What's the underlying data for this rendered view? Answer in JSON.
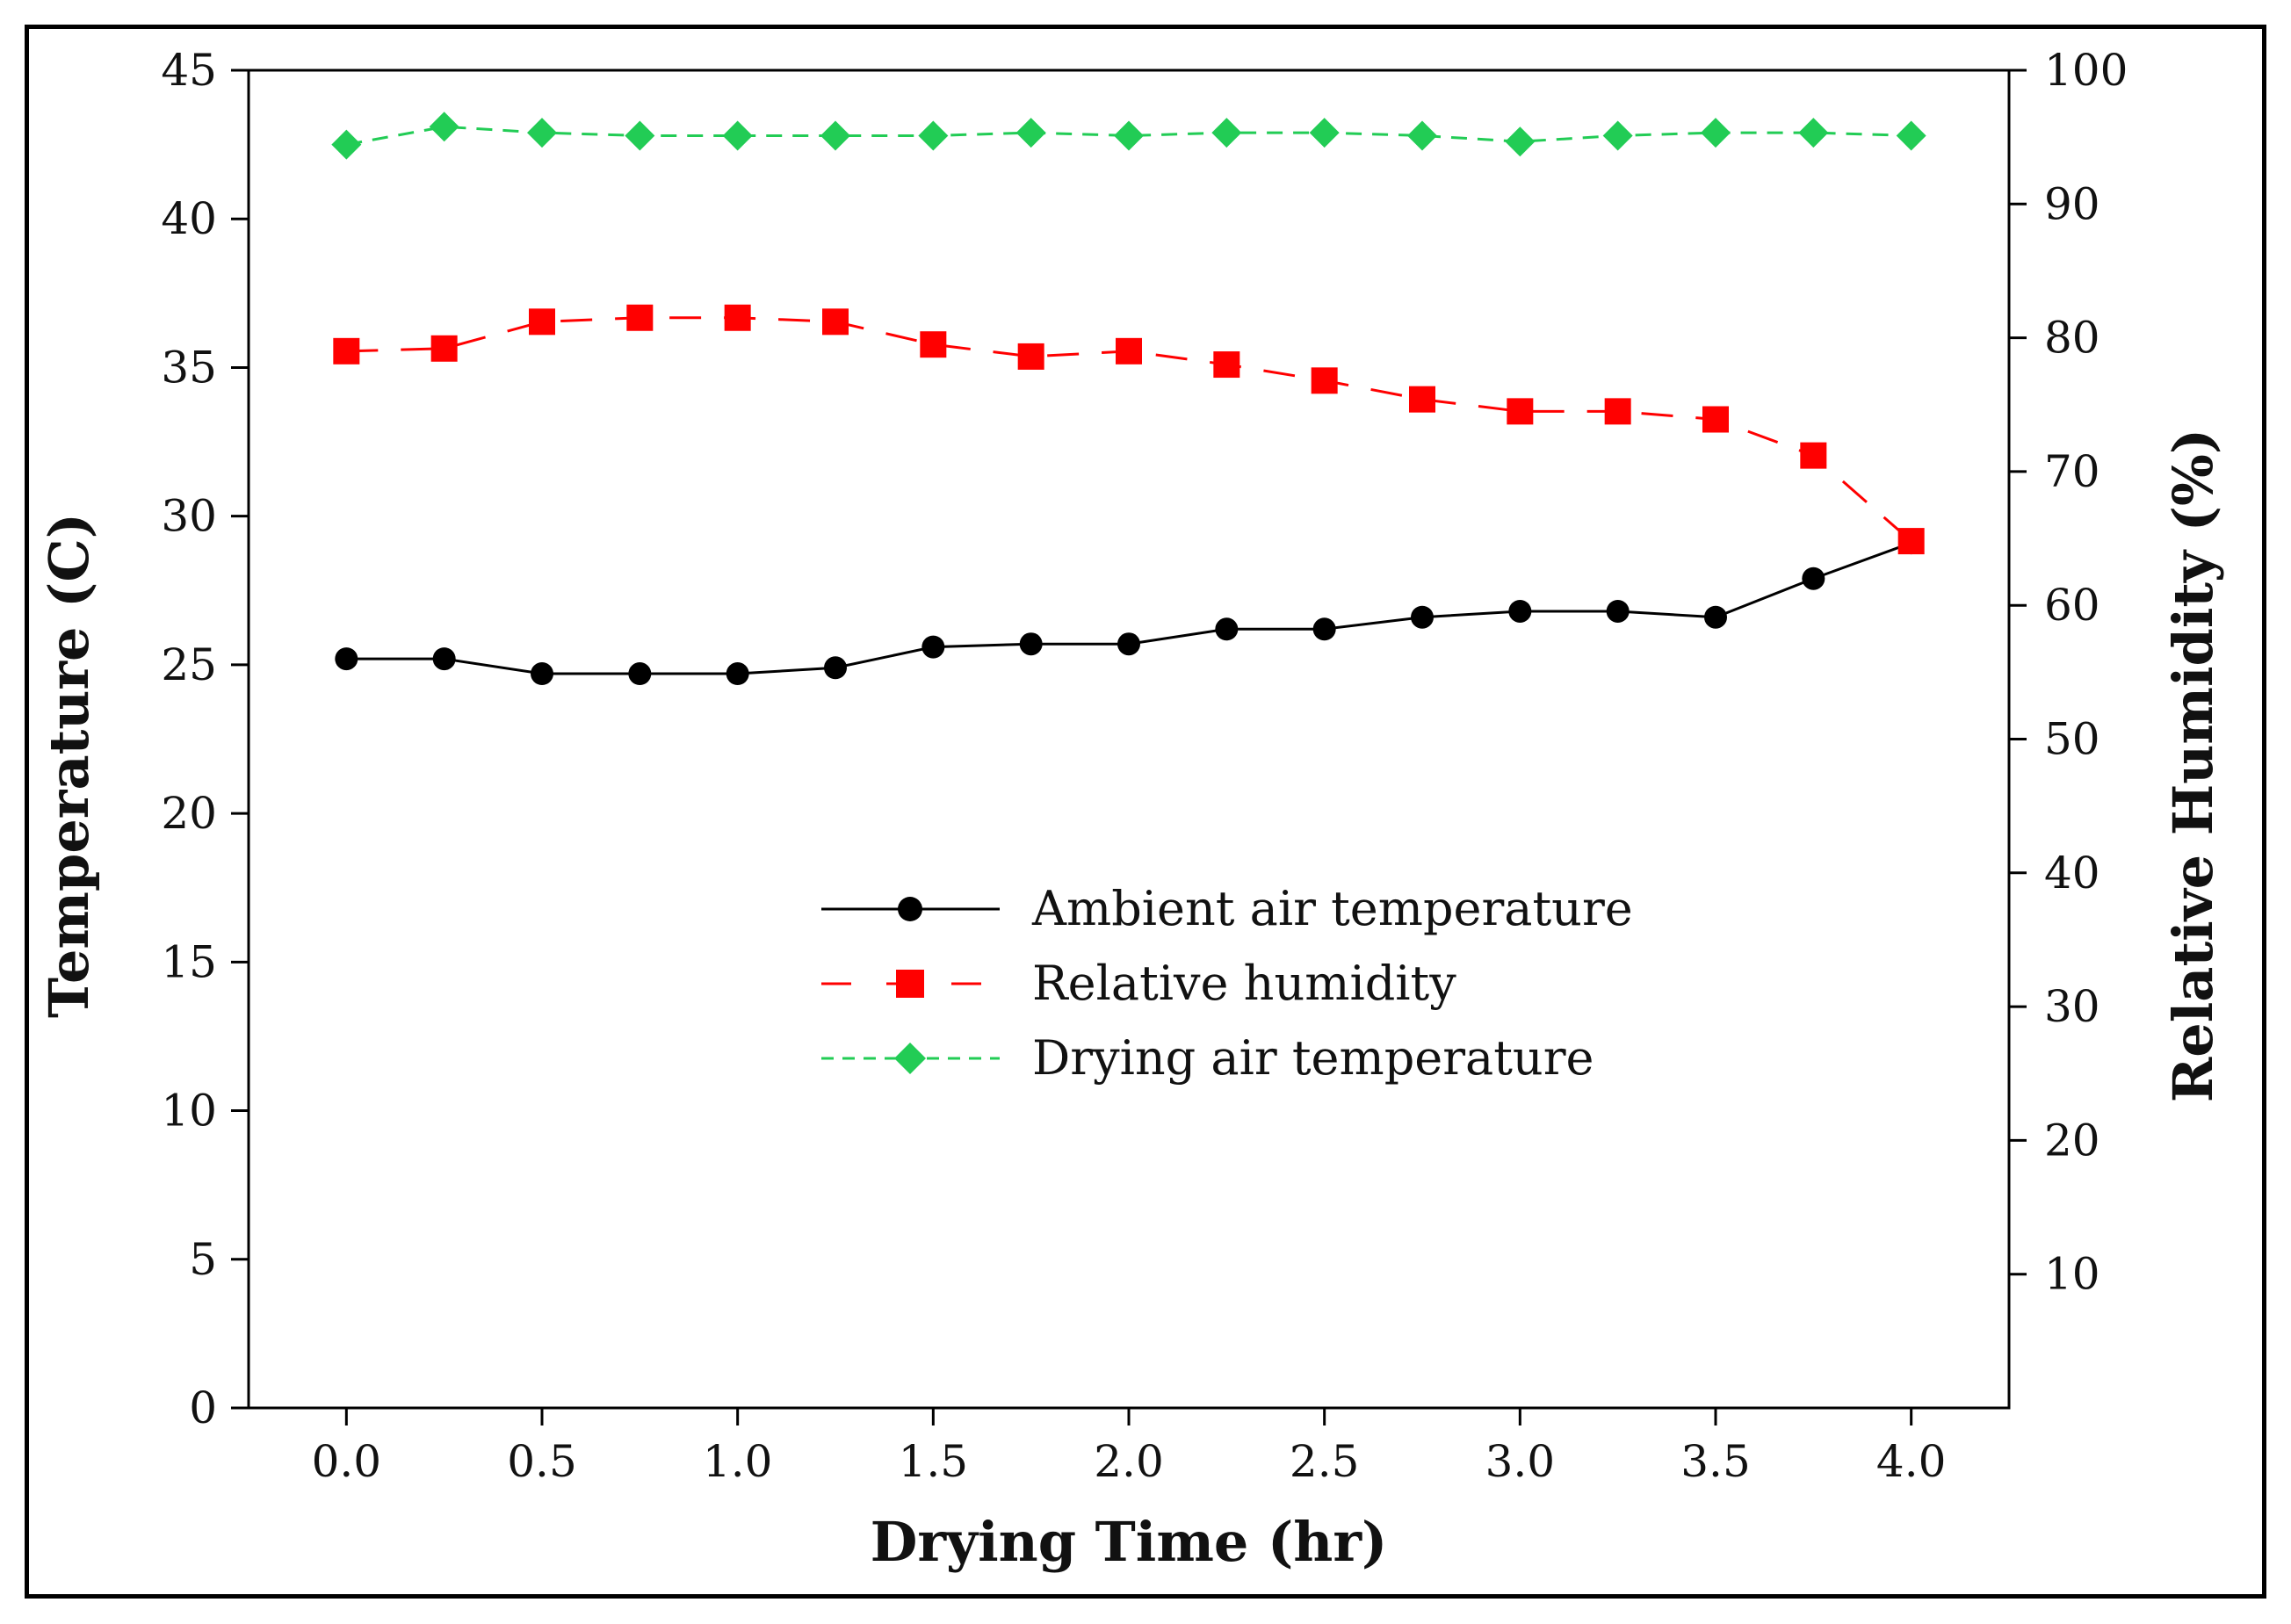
{
  "chart_data": {
    "type": "line",
    "title": "",
    "xlabel": "Drying Time (hr)",
    "ylabel_left": "Temperature (C)",
    "ylabel_right": "Relative Humidity (%)",
    "xlim": [
      -0.25,
      4.25
    ],
    "ylim_left": [
      0,
      45
    ],
    "ylim_right": [
      0,
      100
    ],
    "x": [
      0.0,
      0.25,
      0.5,
      0.75,
      1.0,
      1.25,
      1.5,
      1.75,
      2.0,
      2.25,
      2.5,
      2.75,
      3.0,
      3.25,
      3.5,
      3.75,
      4.0
    ],
    "x_ticks": [
      {
        "value": 0.0,
        "label": "0.0"
      },
      {
        "value": 0.5,
        "label": "0.5"
      },
      {
        "value": 1.0,
        "label": "1.0"
      },
      {
        "value": 1.5,
        "label": "1.5"
      },
      {
        "value": 2.0,
        "label": "2.0"
      },
      {
        "value": 2.5,
        "label": "2.5"
      },
      {
        "value": 3.0,
        "label": "3.0"
      },
      {
        "value": 3.5,
        "label": "3.5"
      },
      {
        "value": 4.0,
        "label": "4.0"
      }
    ],
    "y_left_ticks": [
      {
        "value": 0,
        "label": "0"
      },
      {
        "value": 5,
        "label": "5"
      },
      {
        "value": 10,
        "label": "10"
      },
      {
        "value": 15,
        "label": "15"
      },
      {
        "value": 20,
        "label": "20"
      },
      {
        "value": 25,
        "label": "25"
      },
      {
        "value": 30,
        "label": "30"
      },
      {
        "value": 35,
        "label": "35"
      },
      {
        "value": 40,
        "label": "40"
      },
      {
        "value": 45,
        "label": "45"
      }
    ],
    "y_right_ticks": [
      {
        "value": 10,
        "label": "10"
      },
      {
        "value": 20,
        "label": "20"
      },
      {
        "value": 30,
        "label": "30"
      },
      {
        "value": 40,
        "label": "40"
      },
      {
        "value": 50,
        "label": "50"
      },
      {
        "value": 60,
        "label": "60"
      },
      {
        "value": 70,
        "label": "70"
      },
      {
        "value": 80,
        "label": "80"
      },
      {
        "value": 90,
        "label": "90"
      },
      {
        "value": 100,
        "label": "100"
      }
    ],
    "series": [
      {
        "name": "Ambient air temperature",
        "axis": "left",
        "color": "#000000",
        "marker": "circle",
        "line": "solid",
        "values": [
          25.2,
          25.2,
          24.7,
          24.7,
          24.7,
          24.9,
          25.6,
          25.7,
          25.7,
          26.2,
          26.2,
          26.6,
          26.8,
          26.8,
          26.6,
          27.9,
          29.1
        ]
      },
      {
        "name": "Relative humidity",
        "axis": "right",
        "color": "#ff0000",
        "marker": "square",
        "line": "longdash",
        "values": [
          79.0,
          79.2,
          81.2,
          81.5,
          81.5,
          81.2,
          79.5,
          78.6,
          79.0,
          78.0,
          76.8,
          75.4,
          74.5,
          74.5,
          73.9,
          71.2,
          64.8
        ]
      },
      {
        "name": "Drying air temperature",
        "axis": "left",
        "color": "#22cc55",
        "marker": "diamond",
        "line": "dash",
        "values": [
          42.5,
          43.1,
          42.9,
          42.8,
          42.8,
          42.8,
          42.8,
          42.9,
          42.8,
          42.9,
          42.9,
          42.8,
          42.6,
          42.8,
          42.9,
          42.9,
          42.8
        ]
      }
    ],
    "legend": {
      "position": "center",
      "entries": [
        "Ambient air temperature",
        "Relative humidity",
        "Drying air temperature"
      ]
    },
    "grid": false
  }
}
